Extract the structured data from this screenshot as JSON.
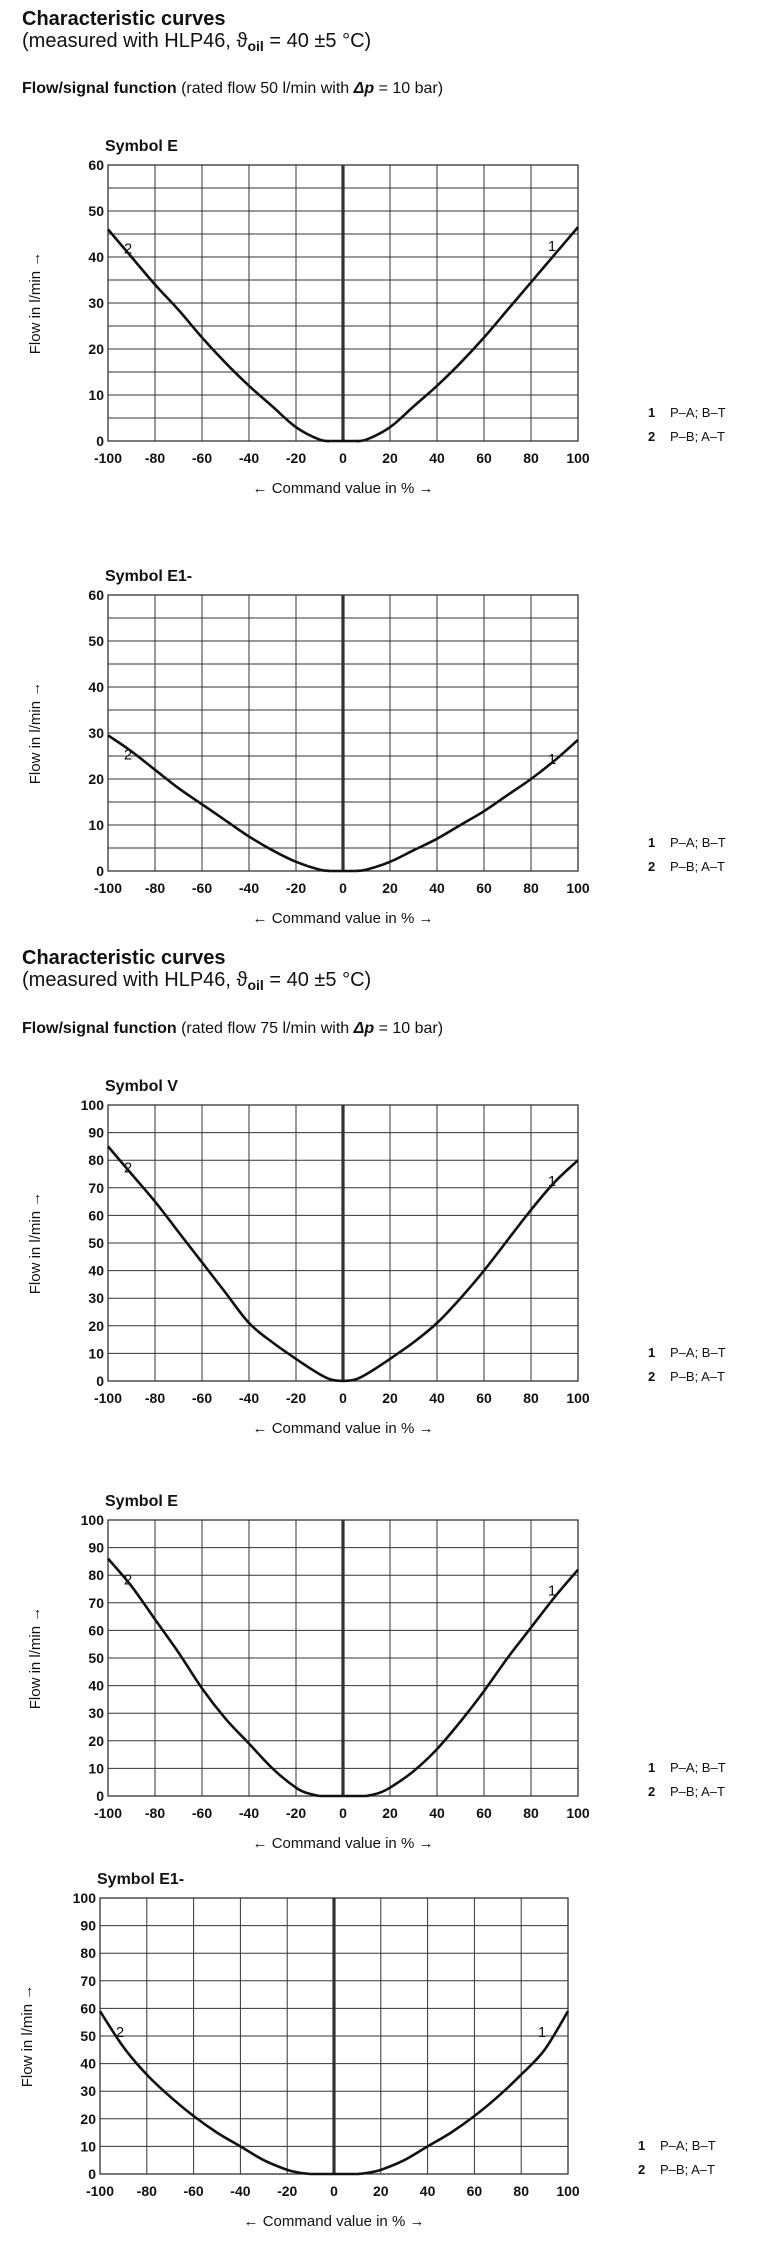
{
  "sections": [
    {
      "title": "Characteristic curves",
      "subtitle_prefix": "(measured with HLP46, ϑ",
      "subtitle_sub": "oil",
      "subtitle_suffix": " = 40 ±5 °C)",
      "func_bold": "Flow/signal function",
      "func_pre": " (rated flow 50 l/min with ",
      "func_italic": "Δp",
      "func_post": " = 10 bar)"
    },
    {
      "title": "Characteristic curves",
      "subtitle_prefix": "(measured with HLP46, ϑ",
      "subtitle_sub": "oil",
      "subtitle_suffix": " = 40 ±5 °C)",
      "func_bold": "Flow/signal function",
      "func_pre": " (rated flow 75 l/min with ",
      "func_italic": "Δp",
      "func_post": " = 10 bar)"
    }
  ],
  "legend": [
    {
      "num": "1",
      "label": "P–A; B–T"
    },
    {
      "num": "2",
      "label": "P–B; A–T"
    }
  ],
  "colors": {
    "line": "#111111",
    "grid": "#333333",
    "background": "#ffffff"
  },
  "chart_data": [
    {
      "type": "line",
      "title": "Symbol E",
      "xlabel": "← Command value in % →",
      "ylabel": "Flow in l/min →",
      "xlim": [
        -100,
        100
      ],
      "ylim": [
        0,
        60
      ],
      "xticks": [
        -100,
        -80,
        -60,
        -40,
        -20,
        0,
        20,
        40,
        60,
        80,
        100
      ],
      "yticks": [
        0,
        10,
        20,
        30,
        40,
        50,
        60
      ],
      "grid": true,
      "series": [
        {
          "name": "1",
          "x": [
            5,
            10,
            20,
            30,
            40,
            50,
            60,
            70,
            80,
            90,
            100
          ],
          "y": [
            0,
            0.3,
            3,
            7.5,
            12,
            17,
            22.5,
            28.5,
            34.5,
            40.5,
            46.5
          ]
        },
        {
          "name": "2",
          "x": [
            -5,
            -10,
            -20,
            -30,
            -40,
            -50,
            -60,
            -70,
            -80,
            -90,
            -100
          ],
          "y": [
            0,
            0.3,
            3,
            7.5,
            12,
            17,
            22.5,
            28.5,
            34,
            40,
            46
          ]
        }
      ]
    },
    {
      "type": "line",
      "title": "Symbol E1-",
      "xlabel": "← Command value in % →",
      "ylabel": "Flow in l/min →",
      "xlim": [
        -100,
        100
      ],
      "ylim": [
        0,
        60
      ],
      "xticks": [
        -100,
        -80,
        -60,
        -40,
        -20,
        0,
        20,
        40,
        60,
        80,
        100
      ],
      "yticks": [
        0,
        10,
        20,
        30,
        40,
        50,
        60
      ],
      "grid": true,
      "series": [
        {
          "name": "1",
          "x": [
            5,
            10,
            20,
            30,
            40,
            50,
            60,
            70,
            80,
            90,
            100
          ],
          "y": [
            0,
            0.3,
            2,
            4.5,
            7,
            10,
            13,
            16.5,
            20,
            24,
            28.5
          ]
        },
        {
          "name": "2",
          "x": [
            -5,
            -10,
            -20,
            -30,
            -40,
            -50,
            -60,
            -70,
            -80,
            -90,
            -100
          ],
          "y": [
            0,
            0.3,
            2,
            4.5,
            7.5,
            11,
            14.5,
            18,
            22,
            26,
            29.5
          ]
        }
      ]
    },
    {
      "type": "line",
      "title": "Symbol V",
      "xlabel": "← Command value in % →",
      "ylabel": "Flow in l/min →",
      "xlim": [
        -100,
        100
      ],
      "ylim": [
        0,
        100
      ],
      "xticks": [
        -100,
        -80,
        -60,
        -40,
        -20,
        0,
        20,
        40,
        60,
        80,
        100
      ],
      "yticks": [
        0,
        10,
        20,
        30,
        40,
        50,
        60,
        70,
        80,
        90,
        100
      ],
      "grid": true,
      "series": [
        {
          "name": "1",
          "x": [
            0,
            5,
            10,
            20,
            30,
            40,
            50,
            60,
            70,
            80,
            90,
            100
          ],
          "y": [
            0,
            0.5,
            2.5,
            8,
            14,
            21,
            30,
            40,
            51,
            62,
            72,
            80
          ]
        },
        {
          "name": "2",
          "x": [
            0,
            -5,
            -10,
            -20,
            -30,
            -40,
            -50,
            -60,
            -70,
            -80,
            -90,
            -100
          ],
          "y": [
            0,
            0.5,
            2.5,
            8,
            14,
            21,
            32,
            43,
            54,
            65,
            75,
            85
          ]
        }
      ]
    },
    {
      "type": "line",
      "title": "Symbol E",
      "xlabel": "← Command value in % →",
      "ylabel": "Flow in l/min →",
      "xlim": [
        -100,
        100
      ],
      "ylim": [
        0,
        100
      ],
      "xticks": [
        -100,
        -80,
        -60,
        -40,
        -20,
        0,
        20,
        40,
        60,
        80,
        100
      ],
      "yticks": [
        0,
        10,
        20,
        30,
        40,
        50,
        60,
        70,
        80,
        90,
        100
      ],
      "grid": true,
      "series": [
        {
          "name": "1",
          "x": [
            10,
            15,
            20,
            30,
            40,
            50,
            60,
            70,
            80,
            90,
            100
          ],
          "y": [
            0,
            1,
            3,
            9,
            17,
            27,
            38,
            50,
            61,
            72,
            82
          ]
        },
        {
          "name": "2",
          "x": [
            -10,
            -15,
            -20,
            -30,
            -40,
            -50,
            -60,
            -70,
            -80,
            -90,
            -100
          ],
          "y": [
            0,
            1,
            3,
            10,
            19,
            28,
            39,
            52,
            64,
            76,
            86
          ]
        }
      ]
    },
    {
      "type": "line",
      "title": "Symbol E1-",
      "xlabel": "← Command value in % →",
      "ylabel": "Flow in l/min →",
      "xlim": [
        -100,
        100
      ],
      "ylim": [
        0,
        100
      ],
      "xticks": [
        -100,
        -80,
        -60,
        -40,
        -20,
        0,
        20,
        40,
        60,
        80,
        100
      ],
      "yticks": [
        0,
        10,
        20,
        30,
        40,
        50,
        60,
        70,
        80,
        90,
        100
      ],
      "grid": true,
      "series": [
        {
          "name": "1",
          "x": [
            10,
            15,
            20,
            30,
            40,
            50,
            60,
            70,
            80,
            90,
            100
          ],
          "y": [
            0,
            0.5,
            1.5,
            5,
            10,
            15,
            21,
            28,
            36,
            45,
            59
          ]
        },
        {
          "name": "2",
          "x": [
            -10,
            -15,
            -20,
            -30,
            -40,
            -50,
            -60,
            -70,
            -80,
            -90,
            -100
          ],
          "y": [
            0,
            0.5,
            1.5,
            5,
            10,
            15,
            21,
            28,
            36,
            46,
            59
          ]
        }
      ]
    }
  ]
}
